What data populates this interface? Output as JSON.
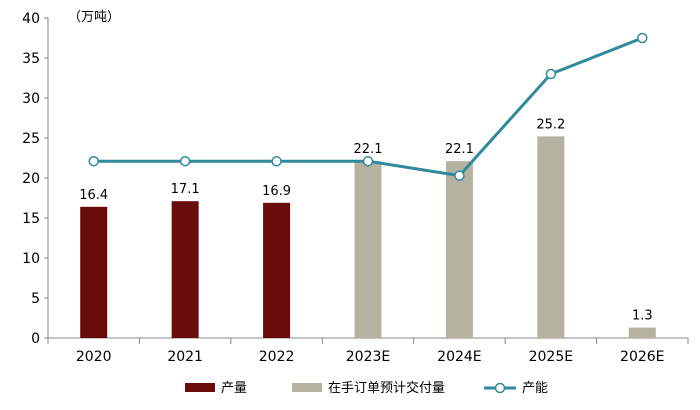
{
  "chart_data": {
    "type": "bar",
    "unit_label": "（万吨）",
    "categories": [
      "2020",
      "2021",
      "2022",
      "2023E",
      "2024E",
      "2025E",
      "2026E"
    ],
    "ylim": [
      0,
      40
    ],
    "yticks": [
      0,
      5,
      10,
      15,
      20,
      25,
      30,
      35,
      40
    ],
    "grid": false,
    "legend_position": "bottom",
    "series": [
      {
        "name": "产量",
        "kind": "bar",
        "color": "#6b0c0c",
        "values": [
          16.4,
          17.1,
          16.9,
          null,
          null,
          null,
          null
        ],
        "labels": [
          "16.4",
          "17.1",
          "16.9",
          "",
          "",
          "",
          ""
        ]
      },
      {
        "name": "在手订单预计交付量",
        "kind": "bar",
        "color": "#b5b29f",
        "values": [
          null,
          null,
          null,
          22.1,
          22.1,
          25.2,
          1.3
        ],
        "labels": [
          "",
          "",
          "",
          "22.1",
          "22.1",
          "25.2",
          "1.3"
        ]
      },
      {
        "name": "产能",
        "kind": "line",
        "color": "#2f8a9c",
        "values": [
          22.1,
          22.1,
          22.1,
          22.1,
          20.3,
          33.0,
          37.5
        ]
      }
    ]
  }
}
